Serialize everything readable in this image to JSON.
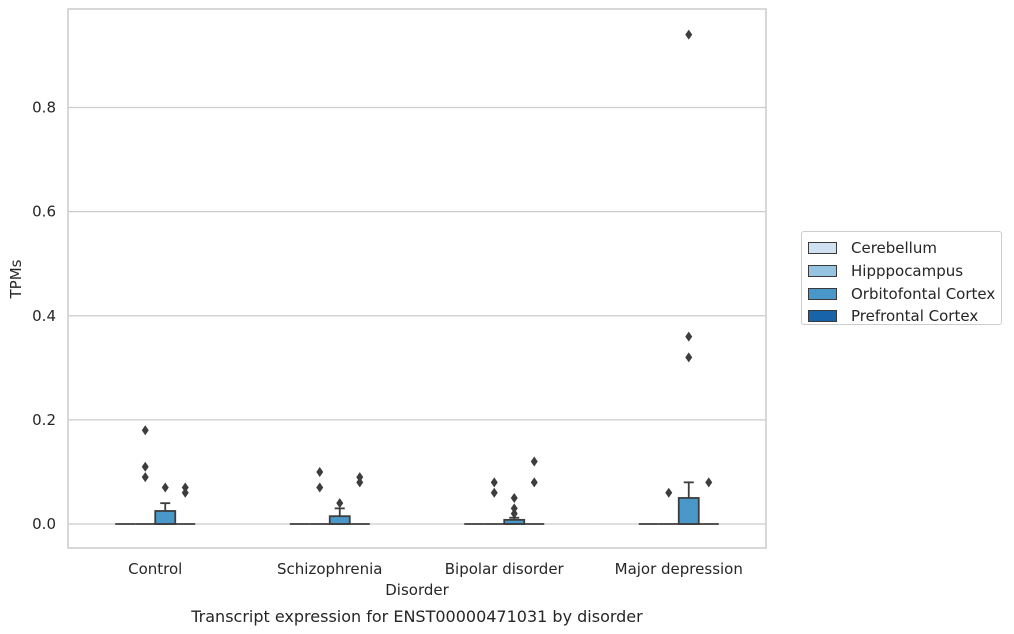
{
  "chart_data": {
    "type": "box",
    "title": "Transcript expression for ENST00000471031 by disorder",
    "xlabel": "Disorder",
    "ylabel": "TPMs",
    "ylim": [
      -0.045,
      0.99
    ],
    "yticks": [
      0.0,
      0.2,
      0.4,
      0.6,
      0.8
    ],
    "ytick_labels": [
      "0.0",
      "0.2",
      "0.4",
      "0.6",
      "0.8"
    ],
    "grid": "horizontal",
    "legend_placement": "right, outside plot",
    "categories": [
      "Control",
      "Schizophrenia",
      "Bipolar disorder",
      "Major depression"
    ],
    "series": [
      {
        "name": "Cerebellum",
        "color": "#d0e1f2",
        "boxes": [
          {
            "q1": 0,
            "median": 0,
            "q3": 0,
            "whisker_low": 0,
            "whisker_high": 0,
            "outliers": []
          },
          {
            "q1": 0,
            "median": 0,
            "q3": 0,
            "whisker_low": 0,
            "whisker_high": 0,
            "outliers": []
          },
          {
            "q1": 0,
            "median": 0,
            "q3": 0,
            "whisker_low": 0,
            "whisker_high": 0,
            "outliers": []
          },
          {
            "q1": 0,
            "median": 0,
            "q3": 0,
            "whisker_low": 0,
            "whisker_high": 0,
            "outliers": []
          }
        ]
      },
      {
        "name": "Hipppocampus",
        "color": "#94c4df",
        "boxes": [
          {
            "q1": 0,
            "median": 0,
            "q3": 0,
            "whisker_low": 0,
            "whisker_high": 0,
            "outliers": [
              0.18,
              0.11,
              0.09
            ]
          },
          {
            "q1": 0,
            "median": 0,
            "q3": 0,
            "whisker_low": 0,
            "whisker_high": 0,
            "outliers": [
              0.07,
              0.1
            ]
          },
          {
            "q1": 0,
            "median": 0,
            "q3": 0,
            "whisker_low": 0,
            "whisker_high": 0,
            "outliers": [
              0.06,
              0.08
            ]
          },
          {
            "q1": 0,
            "median": 0,
            "q3": 0,
            "whisker_low": 0,
            "whisker_high": 0,
            "outliers": [
              0.06
            ]
          }
        ]
      },
      {
        "name": "Orbitofontal Cortex",
        "color": "#4a98c9",
        "boxes": [
          {
            "q1": 0,
            "median": 0,
            "q3": 0.025,
            "whisker_low": 0,
            "whisker_high": 0.04,
            "outliers": [
              0.07
            ]
          },
          {
            "q1": 0,
            "median": 0,
            "q3": 0.015,
            "whisker_low": 0,
            "whisker_high": 0.03,
            "outliers": [
              0.04
            ]
          },
          {
            "q1": 0,
            "median": 0,
            "q3": 0.008,
            "whisker_low": 0,
            "whisker_high": 0.012,
            "outliers": [
              0.02,
              0.03,
              0.05
            ]
          },
          {
            "q1": 0,
            "median": 0,
            "q3": 0.05,
            "whisker_low": 0,
            "whisker_high": 0.08,
            "outliers": [
              0.32,
              0.36,
              0.94
            ]
          }
        ]
      },
      {
        "name": "Prefrontal Cortex",
        "color": "#1764ab",
        "boxes": [
          {
            "q1": 0,
            "median": 0,
            "q3": 0,
            "whisker_low": 0,
            "whisker_high": 0,
            "outliers": [
              0.06,
              0.07
            ]
          },
          {
            "q1": 0,
            "median": 0,
            "q3": 0,
            "whisker_low": 0,
            "whisker_high": 0,
            "outliers": [
              0.08,
              0.09
            ]
          },
          {
            "q1": 0,
            "median": 0,
            "q3": 0,
            "whisker_low": 0,
            "whisker_high": 0,
            "outliers": [
              0.08,
              0.12
            ]
          },
          {
            "q1": 0,
            "median": 0,
            "q3": 0,
            "whisker_low": 0,
            "whisker_high": 0,
            "outliers": [
              0.08
            ]
          }
        ]
      }
    ]
  }
}
